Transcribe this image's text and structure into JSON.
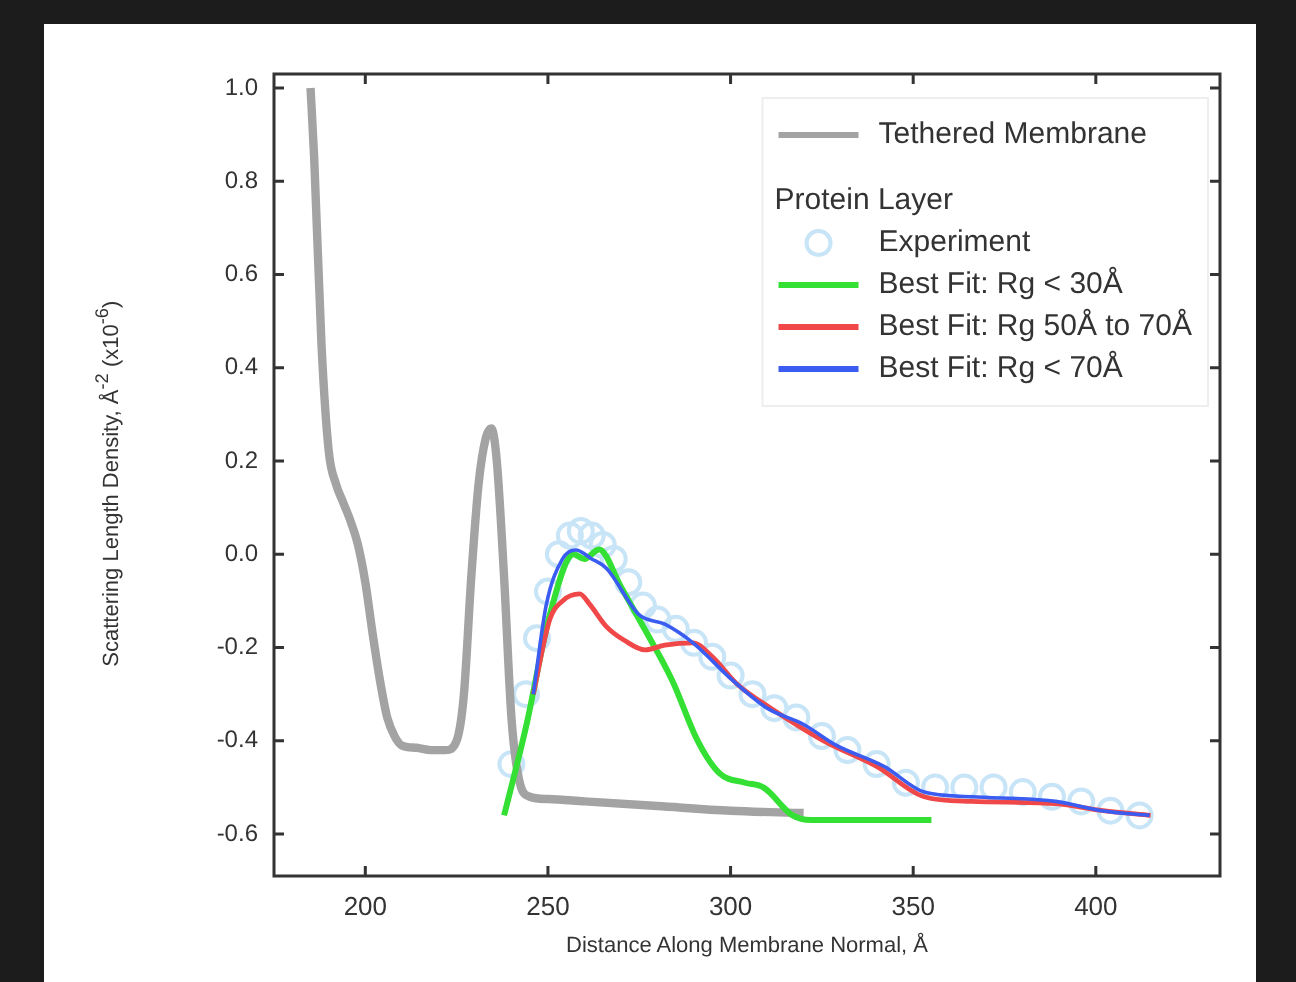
{
  "chart_data": {
    "type": "line",
    "xlabel": "Distance Along Membrane Normal, Å",
    "ylabel": "Scattering Length Density, Å$^{-2}$ (x10$^{-6}$)",
    "legend_title": "Protein Layer",
    "legend": "top right",
    "grid": false,
    "line_style": "solid",
    "xlim": [
      175,
      434
    ],
    "ylim": [
      -0.69,
      1.03
    ],
    "xticks": [
      200,
      250,
      300,
      350,
      400
    ],
    "yticks": [
      {
        "value": 1,
        "label": "1.0"
      },
      0.8,
      0.6,
      0.4,
      0.2,
      {
        "value": 0,
        "label": "0.0"
      },
      -0.2,
      -0.4,
      -0.6
    ],
    "series": [
      {
        "name": "Tethered Membrane",
        "color": "#a3a3a3",
        "x": [
          185,
          186,
          188,
          190,
          192,
          194,
          196,
          198,
          200,
          202,
          204,
          206,
          208,
          210,
          214,
          218,
          222,
          225,
          227,
          229,
          231,
          233,
          234.5,
          236,
          238,
          240,
          242,
          245,
          250,
          260,
          280,
          300,
          320
        ],
        "values": [
          1.0,
          0.85,
          0.45,
          0.22,
          0.15,
          0.11,
          0.07,
          0.02,
          -0.06,
          -0.17,
          -0.27,
          -0.35,
          -0.39,
          -0.41,
          -0.415,
          -0.42,
          -0.42,
          -0.4,
          -0.3,
          -0.05,
          0.15,
          0.25,
          0.27,
          0.2,
          -0.05,
          -0.35,
          -0.48,
          -0.52,
          -0.525,
          -0.53,
          -0.54,
          -0.55,
          -0.555
        ]
      },
      {
        "name": "Experiment",
        "type": "scatter",
        "marker": "circle",
        "color": "#c8e4f7",
        "x": [
          240,
          244,
          247,
          250,
          253,
          256,
          259,
          262,
          265,
          268,
          272,
          276,
          280,
          285,
          290,
          295,
          300,
          306,
          312,
          318,
          325,
          332,
          340,
          348,
          356,
          364,
          372,
          380,
          388,
          396,
          404,
          412
        ],
        "values": [
          -0.45,
          -0.3,
          -0.18,
          -0.08,
          0.0,
          0.04,
          0.05,
          0.04,
          0.02,
          -0.01,
          -0.06,
          -0.11,
          -0.14,
          -0.16,
          -0.19,
          -0.22,
          -0.26,
          -0.3,
          -0.33,
          -0.35,
          -0.39,
          -0.42,
          -0.45,
          -0.49,
          -0.5,
          -0.5,
          -0.5,
          -0.51,
          -0.52,
          -0.53,
          -0.55,
          -0.56
        ]
      },
      {
        "name": "Best Fit: Rg < 30Å",
        "color": "#33e033",
        "x": [
          238,
          244,
          250.5,
          257,
          260,
          264,
          270,
          275,
          284,
          291,
          297,
          304,
          309,
          317,
          322,
          355
        ],
        "values": [
          -0.56,
          -0.37,
          -0.13,
          0.0,
          -0.01,
          0.01,
          -0.07,
          -0.14,
          -0.27,
          -0.4,
          -0.47,
          -0.49,
          -0.5,
          -0.56,
          -0.57,
          -0.57
        ]
      },
      {
        "name": "Best Fit: Rg 50Å to 70Å",
        "color": "#f04848",
        "x": [
          246,
          250.5,
          254,
          258.7,
          261.4,
          266,
          271,
          276.6,
          282,
          289.7,
          295,
          302,
          311,
          325.5,
          340,
          353,
          366,
          389,
          402,
          415
        ],
        "values": [
          -0.3,
          -0.14,
          -0.1,
          -0.085,
          -0.107,
          -0.155,
          -0.185,
          -0.205,
          -0.195,
          -0.19,
          -0.22,
          -0.28,
          -0.33,
          -0.4,
          -0.455,
          -0.52,
          -0.53,
          -0.535,
          -0.55,
          -0.56
        ]
      },
      {
        "name": "Best Fit: Rg < 70Å",
        "color": "#3a5cf0",
        "x": [
          246,
          249.5,
          254,
          257.6,
          262,
          266,
          275,
          282,
          289.7,
          300.5,
          310,
          320,
          329,
          342,
          353,
          366,
          389,
          401.6,
          414.7
        ],
        "values": [
          -0.3,
          -0.11,
          -0.01,
          0.009,
          -0.01,
          -0.03,
          -0.13,
          -0.15,
          -0.19,
          -0.27,
          -0.33,
          -0.365,
          -0.41,
          -0.455,
          -0.51,
          -0.52,
          -0.53,
          -0.55,
          -0.56
        ]
      }
    ]
  }
}
